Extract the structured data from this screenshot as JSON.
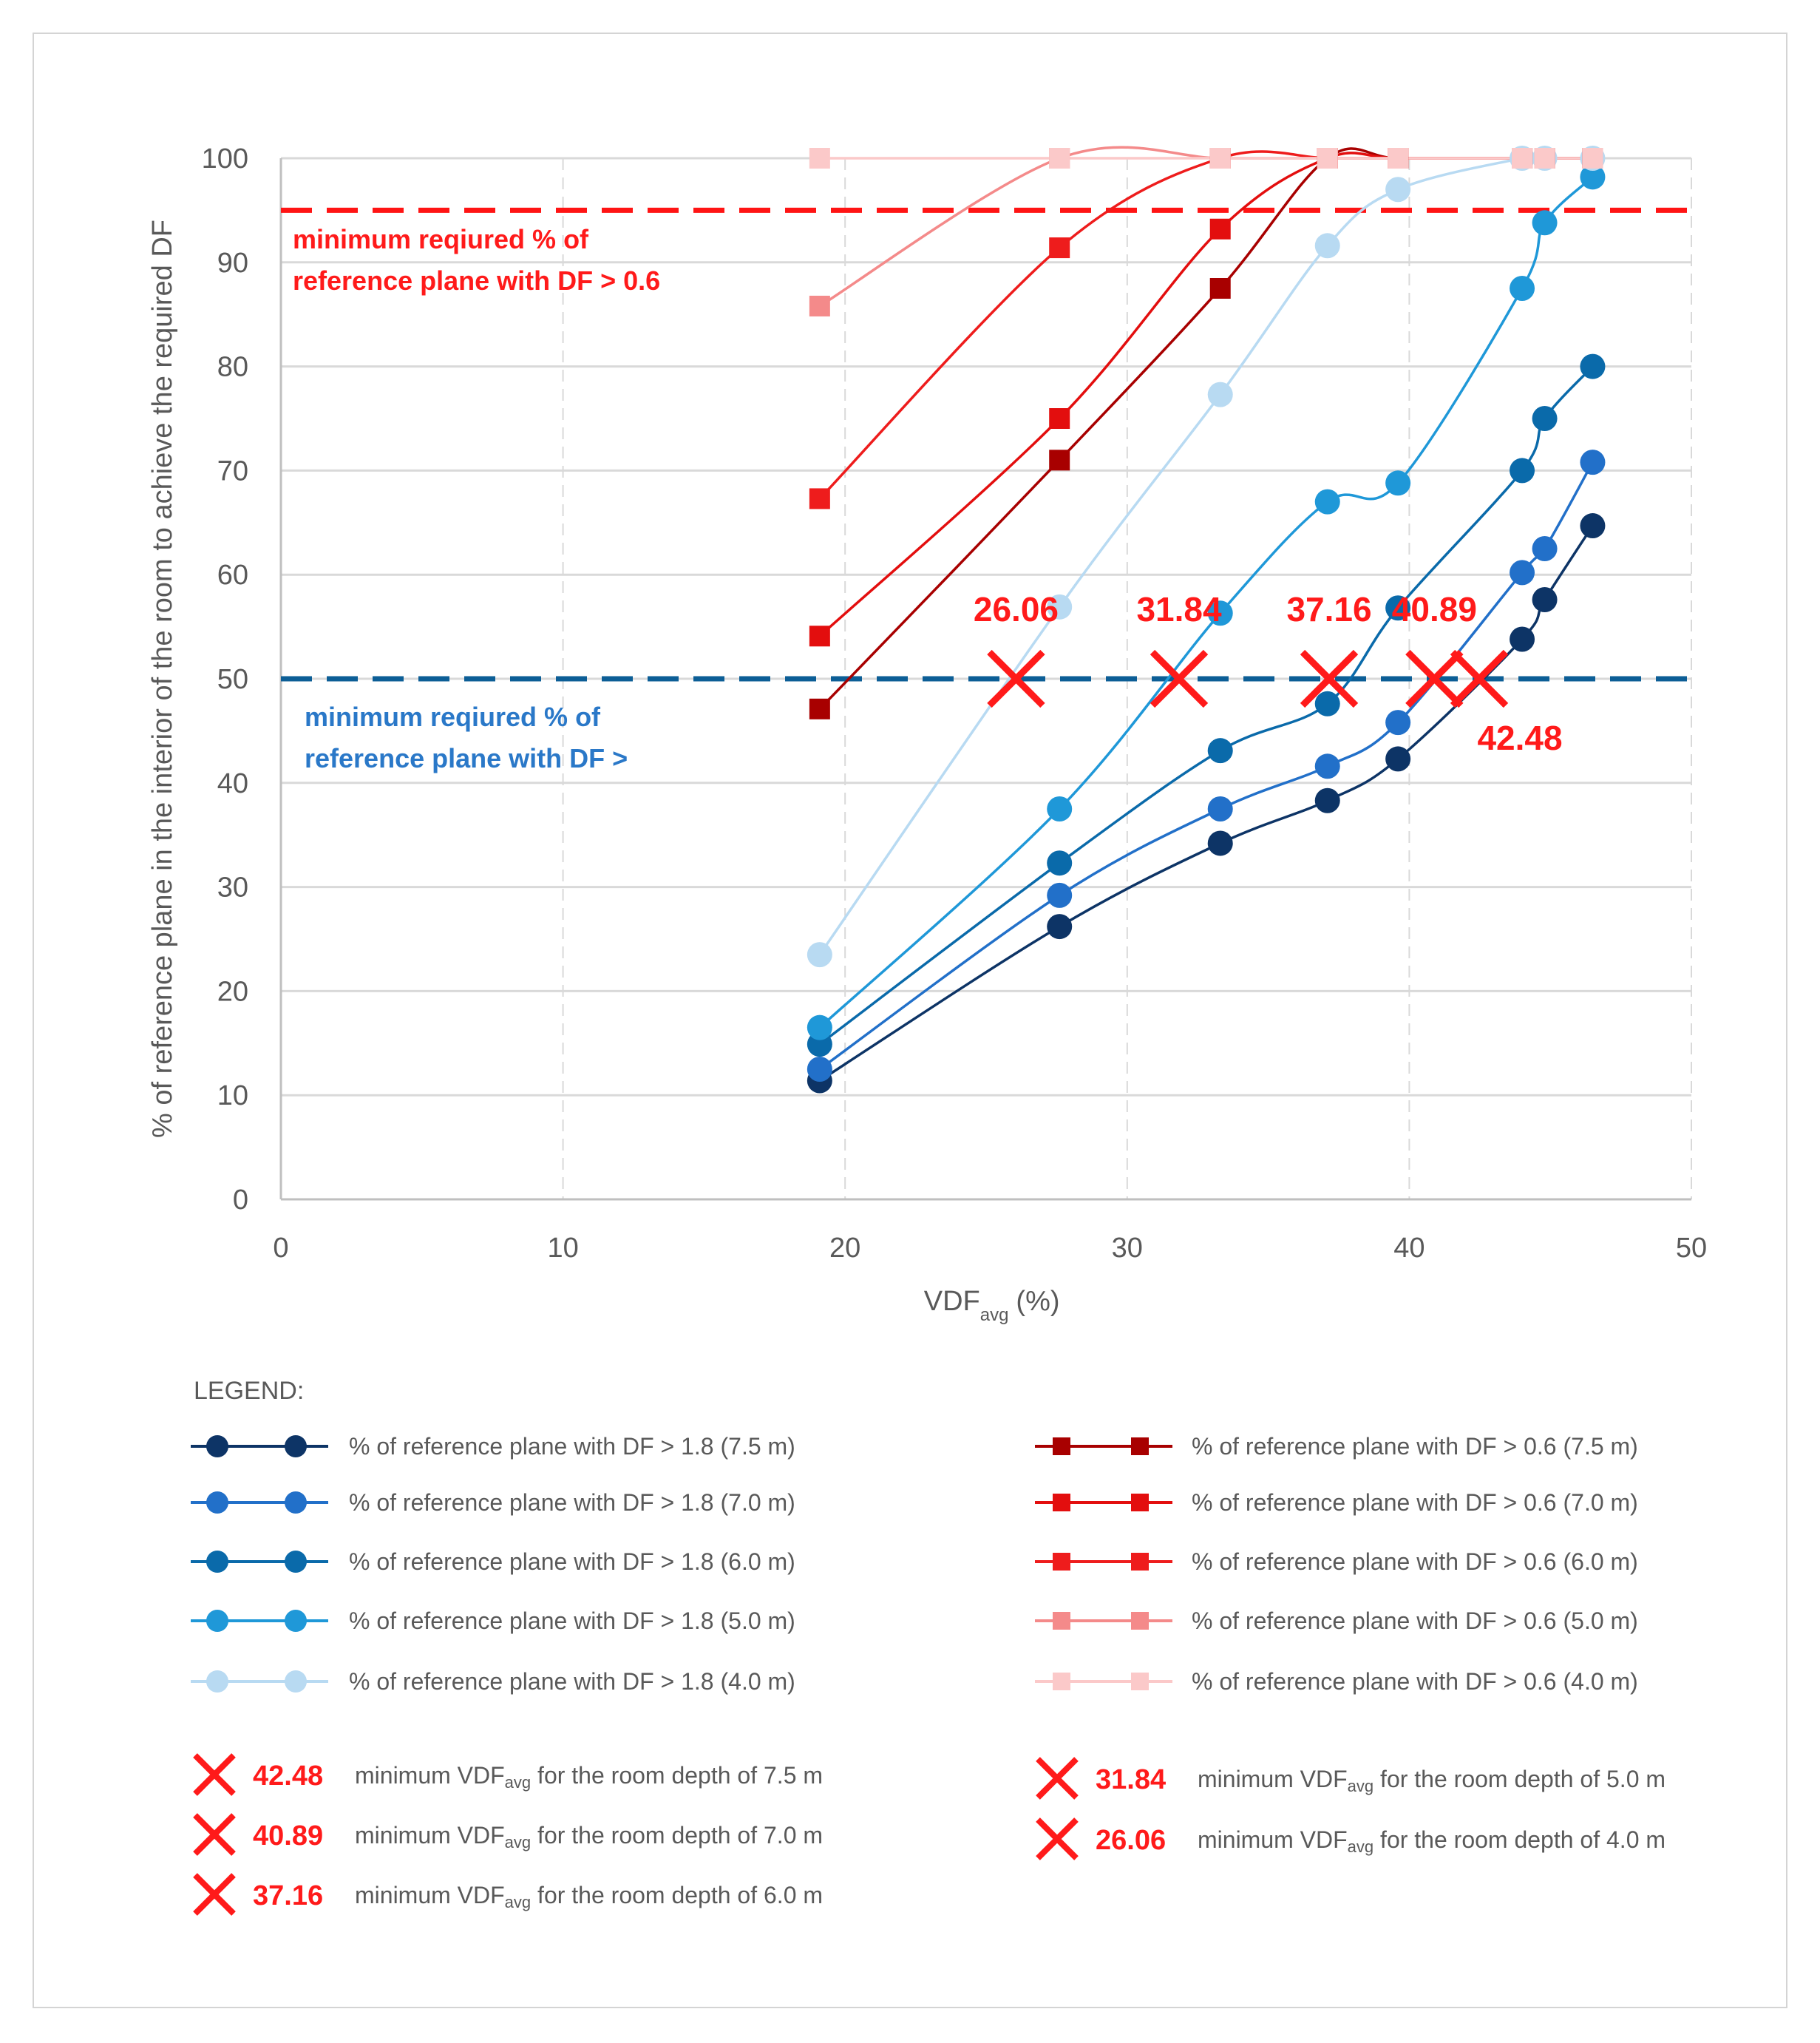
{
  "chart_data": {
    "type": "scatter",
    "title": "",
    "xlabel_main": "VDF",
    "xlabel_sub": "avg",
    "xlabel_unit": "(%)",
    "ylabel": "% of reference plane in the interior of the room to achieve the required DF",
    "xlim": [
      0,
      50
    ],
    "ylim": [
      0,
      100
    ],
    "x_ticks": [
      0,
      10,
      20,
      30,
      40,
      50
    ],
    "y_ticks": [
      0,
      10,
      20,
      30,
      40,
      50,
      60,
      70,
      80,
      90,
      100
    ],
    "grid": true,
    "x": [
      19.1,
      27.6,
      33.3,
      37.1,
      39.6,
      44.0,
      44.8,
      46.5
    ],
    "series": [
      {
        "name": "% of  reference plane with DF > 1.8 (7.5 m)",
        "marker": "circle",
        "color": "#0d3466",
        "values": [
          11.4,
          26.2,
          34.2,
          38.3,
          42.3,
          53.8,
          57.6,
          64.7
        ]
      },
      {
        "name": "% of  reference plane with DF > 1.8 (7.0 m)",
        "marker": "circle",
        "color": "#2270c9",
        "values": [
          12.5,
          29.2,
          37.5,
          41.6,
          45.8,
          60.2,
          62.5,
          70.8
        ]
      },
      {
        "name": "% of  reference plane with DF > 1.8 (6.0 m)",
        "marker": "circle",
        "color": "#0a6aaa",
        "values": [
          14.9,
          32.3,
          43.1,
          47.6,
          56.8,
          70.0,
          75.0,
          80.0
        ]
      },
      {
        "name": "% of  reference plane with DF > 1.8 (5.0 m)",
        "marker": "circle",
        "color": "#1f98d8",
        "values": [
          16.5,
          37.5,
          56.3,
          67.0,
          68.8,
          87.5,
          93.8,
          98.2
        ]
      },
      {
        "name": "% of  reference plane with DF > 1.8 (4.0 m)",
        "marker": "circle",
        "color": "#b8daf2",
        "values": [
          23.5,
          56.9,
          77.3,
          91.6,
          97.0,
          100,
          100,
          100
        ]
      },
      {
        "name": "% of  reference plane with DF > 0.6 (7.5 m)",
        "marker": "square",
        "color": "#a80000",
        "values": [
          47.1,
          71.0,
          87.5,
          100,
          100,
          100,
          100,
          100
        ]
      },
      {
        "name": "% of  reference plane with DF > 0.6 (7.0 m)",
        "marker": "square",
        "color": "#e30e0e",
        "values": [
          54.1,
          75.0,
          93.2,
          100,
          100,
          100,
          100,
          100
        ]
      },
      {
        "name": "% of  reference plane with DF > 0.6 (6.0 m)",
        "marker": "square",
        "color": "#ee1c1c",
        "values": [
          67.3,
          91.4,
          100,
          100,
          100,
          100,
          100,
          100
        ]
      },
      {
        "name": "% of  reference plane with DF > 0.6 (5.0 m)",
        "marker": "square",
        "color": "#f48a8a",
        "values": [
          85.8,
          100,
          100,
          100,
          100,
          100,
          100,
          100
        ]
      },
      {
        "name": "% of  reference plane with DF > 0.6 (4.0 m)",
        "marker": "square",
        "color": "#fbc9c9",
        "values": [
          100,
          100,
          100,
          100,
          100,
          100,
          100,
          100
        ]
      }
    ],
    "reference_lines": [
      {
        "y": 95,
        "color": "#ff1414",
        "text_line1": "minimum reqiured % of",
        "text_line2": "reference plane with DF > 0.6"
      },
      {
        "y": 50,
        "color": "#0c5e96",
        "text_line1": "minimum reqiured % of",
        "text_line2": "reference plane with DF >"
      }
    ],
    "crossings": [
      {
        "x": 26.06,
        "y": 50,
        "label": "26.06"
      },
      {
        "x": 31.84,
        "y": 50,
        "label": "31.84"
      },
      {
        "x": 37.16,
        "y": 50,
        "label": "37.16"
      },
      {
        "x": 40.89,
        "y": 50,
        "label": "40.89"
      },
      {
        "x": 42.48,
        "y": 50,
        "label": "42.48"
      }
    ]
  },
  "legend": {
    "title": "LEGEND:",
    "crossing_items_left": [
      {
        "value": "42.48",
        "desc_pre": "minimum VDF",
        "desc_sub": "avg",
        "desc_post": " for the room depth of 7.5 m"
      },
      {
        "value": "40.89",
        "desc_pre": "minimum VDF",
        "desc_sub": "avg",
        "desc_post": " for the room depth of 7.0 m"
      },
      {
        "value": "37.16",
        "desc_pre": "minimum VDF",
        "desc_sub": "avg",
        "desc_post": " for the room depth of 6.0 m"
      }
    ],
    "crossing_items_right": [
      {
        "value": "31.84",
        "desc_pre": "minimum VDF",
        "desc_sub": "avg",
        "desc_post": " for the room depth of 5.0 m"
      },
      {
        "value": "26.06",
        "desc_pre": "minimum VDF",
        "desc_sub": "avg",
        "desc_post": " for the room depth of 4.0 m"
      }
    ]
  },
  "colors": {
    "grid": "#d9d9d9",
    "crossing": "#ff1a1a"
  }
}
